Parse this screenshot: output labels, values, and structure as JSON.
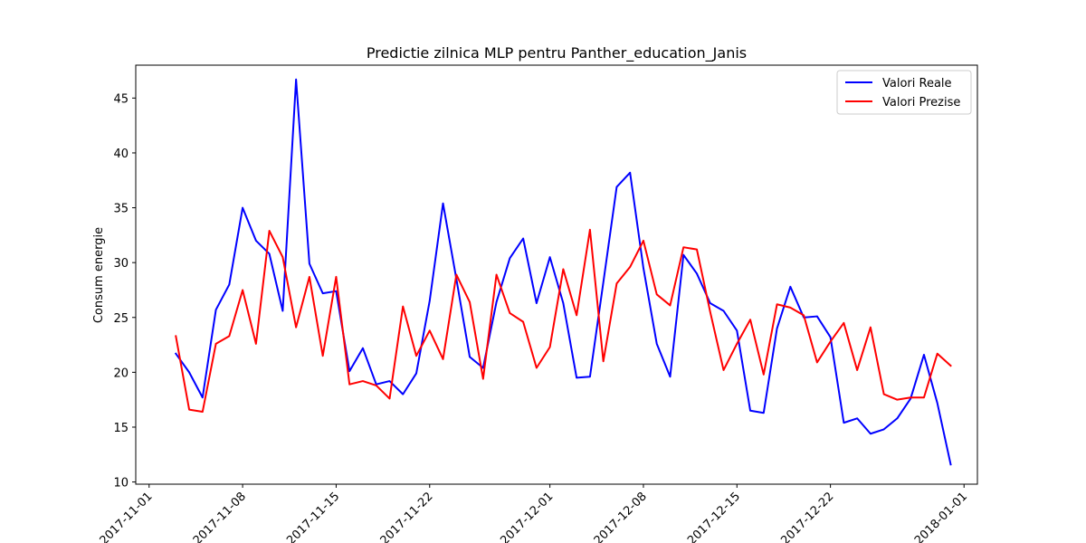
{
  "chart_data": {
    "type": "line",
    "title": "Predictie zilnica MLP pentru Panther_education_Janis",
    "xlabel": "",
    "ylabel": "Consum energie",
    "xlim": [
      "2017-10-31",
      "2018-01-02"
    ],
    "ylim": [
      9.8,
      48
    ],
    "grid": false,
    "legend_position": "upper right",
    "x_ticks": [
      "2017-11-01",
      "2017-11-08",
      "2017-11-15",
      "2017-11-22",
      "2017-12-01",
      "2017-12-08",
      "2017-12-15",
      "2017-12-22",
      "2018-01-01"
    ],
    "y_ticks": [
      10,
      15,
      20,
      25,
      30,
      35,
      40,
      45
    ],
    "x": [
      "2017-11-03",
      "2017-11-04",
      "2017-11-05",
      "2017-11-06",
      "2017-11-07",
      "2017-11-08",
      "2017-11-09",
      "2017-11-10",
      "2017-11-11",
      "2017-11-12",
      "2017-11-13",
      "2017-11-14",
      "2017-11-15",
      "2017-11-16",
      "2017-11-17",
      "2017-11-18",
      "2017-11-19",
      "2017-11-20",
      "2017-11-21",
      "2017-11-22",
      "2017-11-23",
      "2017-11-24",
      "2017-11-25",
      "2017-11-26",
      "2017-11-27",
      "2017-11-28",
      "2017-11-29",
      "2017-11-30",
      "2017-12-01",
      "2017-12-02",
      "2017-12-03",
      "2017-12-04",
      "2017-12-05",
      "2017-12-06",
      "2017-12-07",
      "2017-12-08",
      "2017-12-09",
      "2017-12-10",
      "2017-12-11",
      "2017-12-12",
      "2017-12-13",
      "2017-12-14",
      "2017-12-15",
      "2017-12-16",
      "2017-12-17",
      "2017-12-18",
      "2017-12-19",
      "2017-12-20",
      "2017-12-21",
      "2017-12-22",
      "2017-12-23",
      "2017-12-24",
      "2017-12-25",
      "2017-12-26",
      "2017-12-27",
      "2017-12-28",
      "2017-12-29",
      "2017-12-30",
      "2017-12-31"
    ],
    "series": [
      {
        "name": "Valori Reale",
        "color": "#0000ff",
        "values": [
          21.7,
          20.0,
          17.7,
          25.7,
          28.0,
          35.0,
          32.0,
          30.8,
          25.6,
          46.7,
          29.9,
          27.2,
          27.4,
          20.1,
          22.2,
          18.9,
          19.2,
          18.0,
          19.9,
          26.5,
          35.4,
          28.5,
          21.4,
          20.4,
          26.4,
          30.4,
          32.2,
          26.3,
          30.5,
          26.3,
          19.5,
          19.6,
          28.2,
          36.9,
          38.2,
          29.5,
          22.6,
          19.6,
          30.7,
          29.0,
          26.3,
          25.6,
          23.8,
          16.5,
          16.3,
          24.0,
          27.8,
          25.0,
          25.1,
          23.2,
          15.4,
          15.8,
          14.4,
          14.8,
          15.8,
          17.6,
          21.6,
          17.2,
          11.6
        ]
      },
      {
        "name": "Valori Prezise",
        "color": "#ff0000",
        "values": [
          23.3,
          16.6,
          16.4,
          22.6,
          23.3,
          27.5,
          22.6,
          32.9,
          30.5,
          24.1,
          28.7,
          21.5,
          28.7,
          18.9,
          19.2,
          18.8,
          17.6,
          26.0,
          21.5,
          23.8,
          21.2,
          28.9,
          26.4,
          19.4,
          28.9,
          25.4,
          24.6,
          20.4,
          22.3,
          29.4,
          25.2,
          33.0,
          21.0,
          28.1,
          29.6,
          32.0,
          27.1,
          26.1,
          31.4,
          31.2,
          25.5,
          20.2,
          22.6,
          24.8,
          19.8,
          26.2,
          25.9,
          25.2,
          20.9,
          22.8,
          24.5,
          20.2,
          24.1,
          18.0,
          17.5,
          17.7,
          17.7,
          21.7,
          20.6
        ]
      }
    ]
  }
}
